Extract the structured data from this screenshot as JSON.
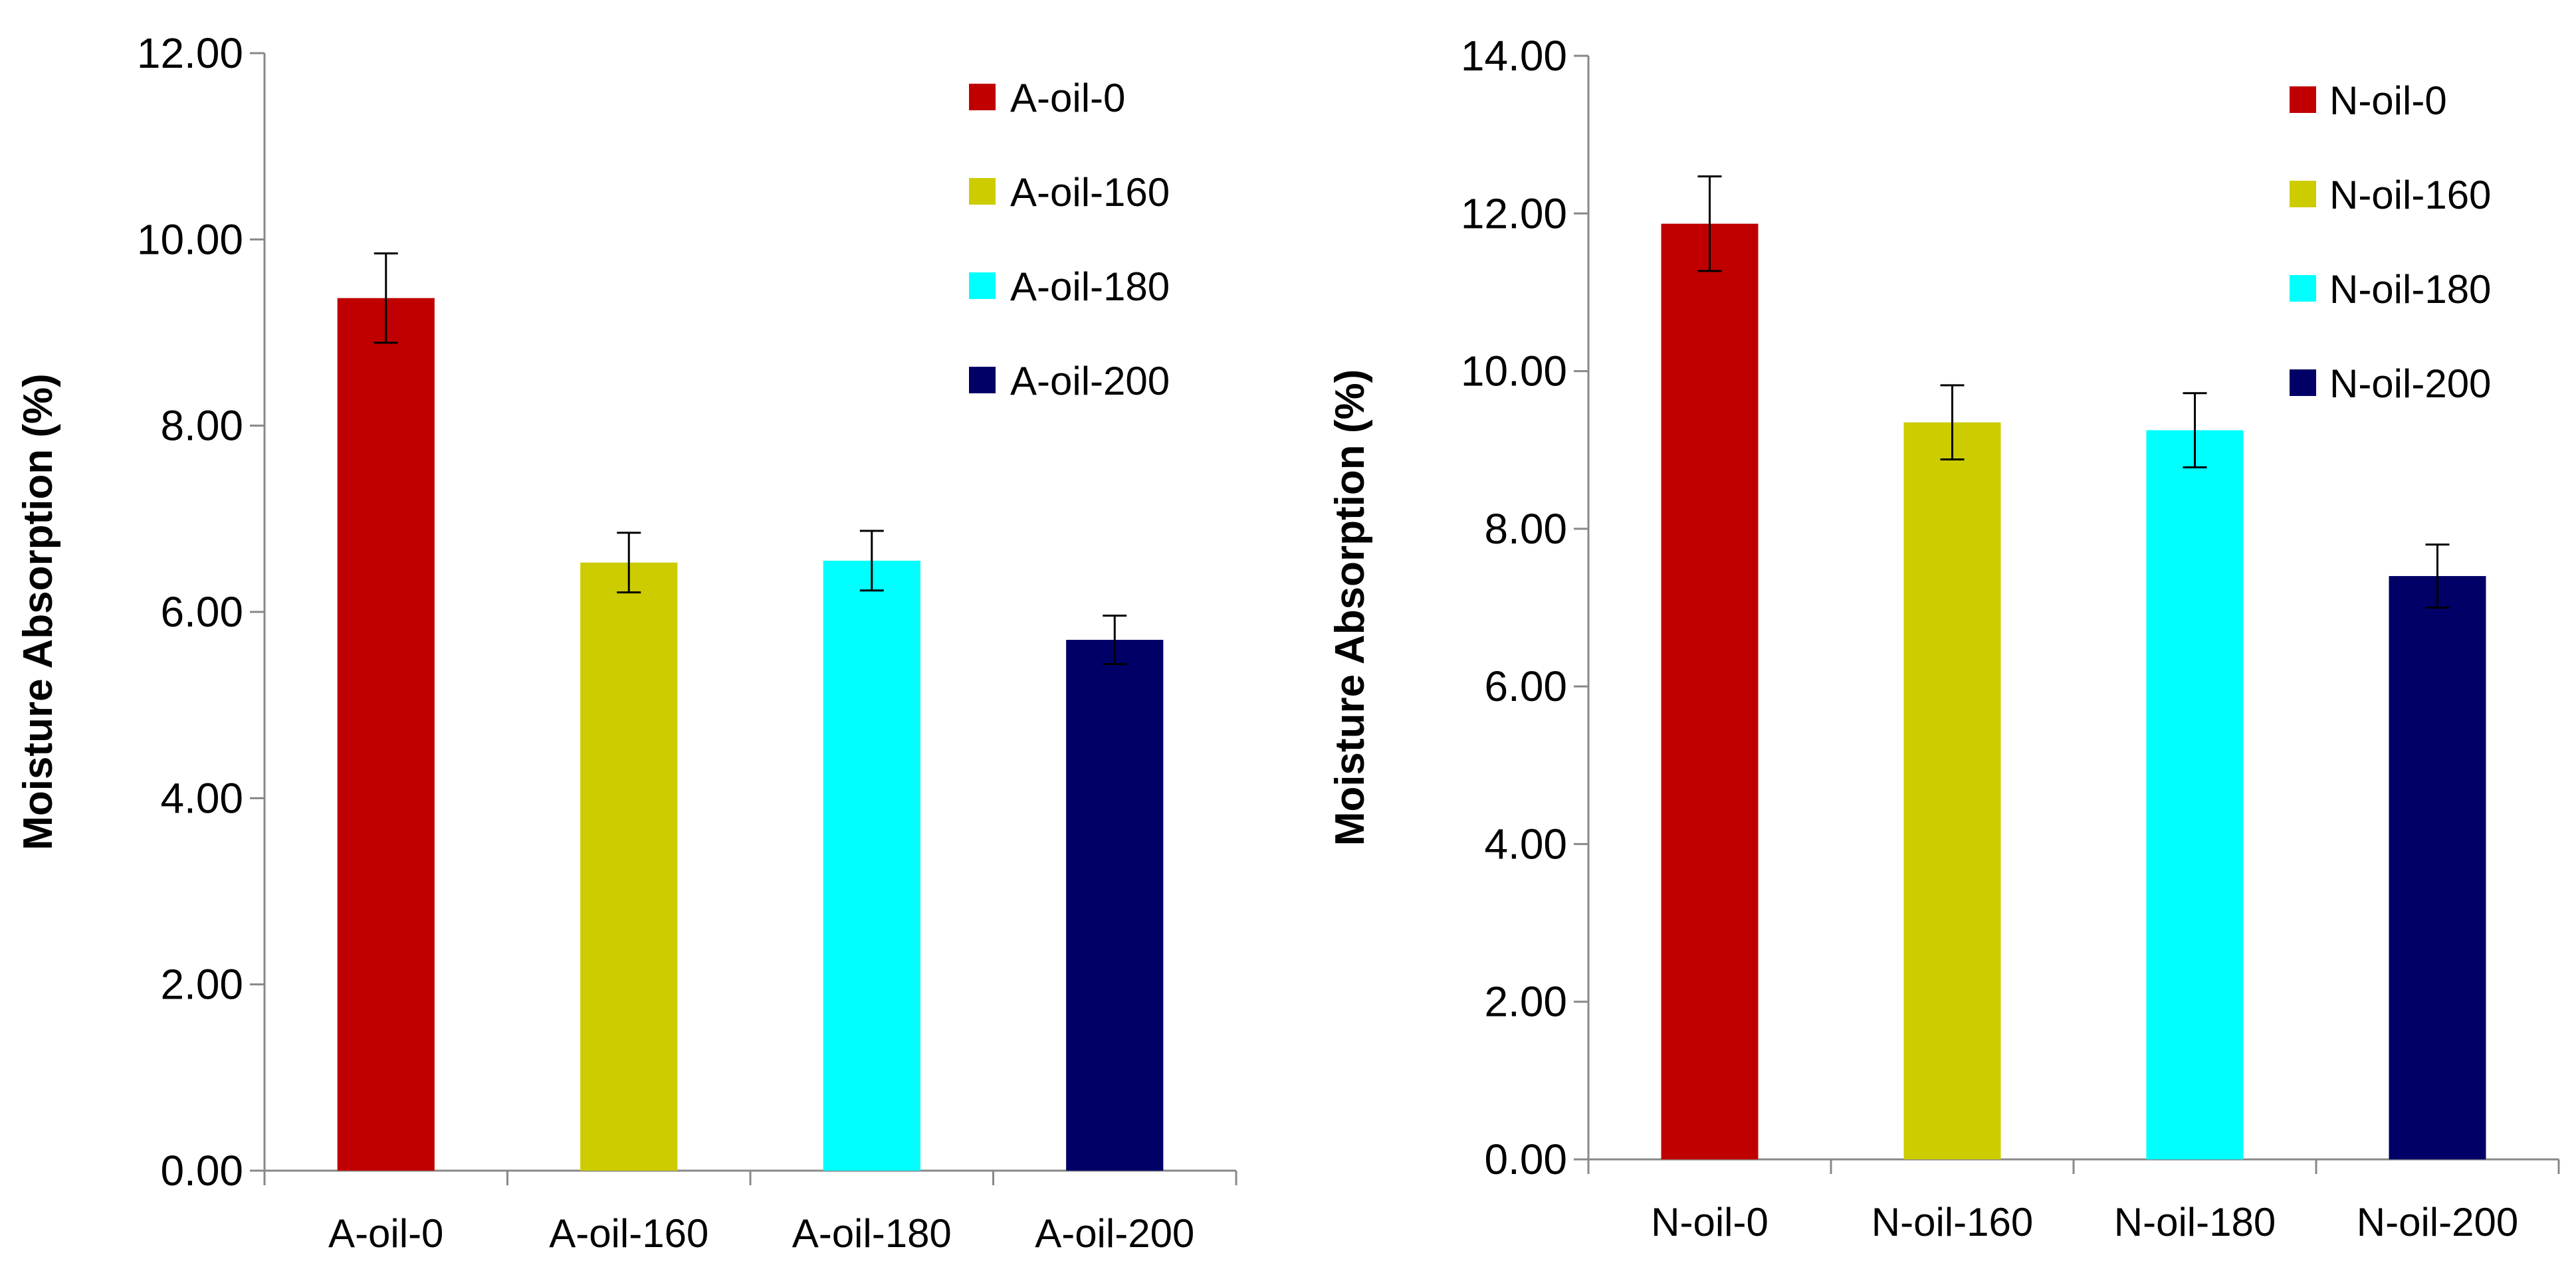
{
  "chart_data": [
    {
      "type": "bar",
      "title": "",
      "xlabel": "",
      "ylabel": "Moisture Absorption (%)",
      "ylim": [
        0,
        12
      ],
      "ystep": 2,
      "yticks": [
        "0.00",
        "2.00",
        "4.00",
        "6.00",
        "8.00",
        "10.00",
        "12.00"
      ],
      "categories": [
        "A-oil-0",
        "A-oil-160",
        "A-oil-180",
        "A-oil-200"
      ],
      "values": [
        9.37,
        6.53,
        6.55,
        5.7
      ],
      "errors": [
        0.48,
        0.32,
        0.32,
        0.26
      ],
      "colors": [
        "#c00000",
        "#cccc00",
        "#00ffff",
        "#000066"
      ],
      "legend": [
        "A-oil-0",
        "A-oil-160",
        "A-oil-180",
        "A-oil-200"
      ],
      "legend_position": "top-right"
    },
    {
      "type": "bar",
      "title": "",
      "xlabel": "",
      "ylabel": "Moisture Absorption (%)",
      "ylim": [
        0,
        14
      ],
      "ystep": 2,
      "yticks": [
        "0.00",
        "2.00",
        "4.00",
        "6.00",
        "8.00",
        "10.00",
        "12.00",
        "14.00"
      ],
      "categories": [
        "N-oil-0",
        "N-oil-160",
        "N-oil-180",
        "N-oil-200"
      ],
      "values": [
        11.87,
        9.35,
        9.25,
        7.4
      ],
      "errors": [
        0.6,
        0.47,
        0.47,
        0.4
      ],
      "colors": [
        "#c00000",
        "#cccc00",
        "#00ffff",
        "#000066"
      ],
      "legend": [
        "N-oil-0",
        "N-oil-160",
        "N-oil-180",
        "N-oil-200"
      ],
      "legend_position": "top-right"
    }
  ]
}
